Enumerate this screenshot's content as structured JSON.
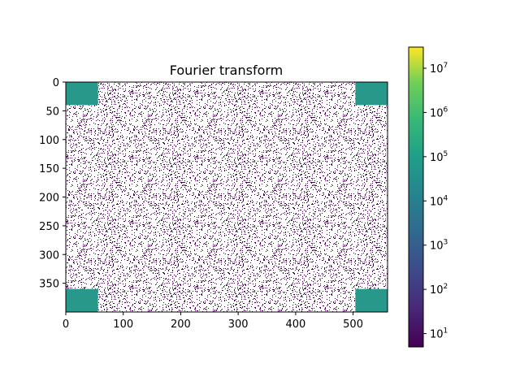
{
  "chart_data": {
    "type": "heatmap",
    "title": "Fourier transform",
    "xlabel": "",
    "ylabel": "",
    "image_shape": [
      400,
      560
    ],
    "xlim": [
      0,
      560
    ],
    "ylim": [
      400,
      0
    ],
    "x_ticks": [
      0,
      100,
      200,
      300,
      400,
      500
    ],
    "y_ticks": [
      0,
      50,
      100,
      150,
      200,
      250,
      300,
      350
    ],
    "colormap": "viridis",
    "colorbar": {
      "scale": "log",
      "range": [
        5,
        30000000
      ],
      "ticks": [
        {
          "value": 10,
          "label": "10",
          "exp": "1"
        },
        {
          "value": 100,
          "label": "10",
          "exp": "2"
        },
        {
          "value": 1000,
          "label": "10",
          "exp": "3"
        },
        {
          "value": 10000,
          "label": "10",
          "exp": "4"
        },
        {
          "value": 100000,
          "label": "10",
          "exp": "5"
        },
        {
          "value": 1000000,
          "label": "10",
          "exp": "6"
        },
        {
          "value": 10000000,
          "label": "10",
          "exp": "7"
        }
      ]
    },
    "regions": [
      {
        "name": "top-left",
        "x": [
          0,
          56
        ],
        "y": [
          0,
          40
        ],
        "level": 50000
      },
      {
        "name": "top-right",
        "x": [
          504,
          560
        ],
        "y": [
          0,
          40
        ],
        "level": 50000
      },
      {
        "name": "bottom-left",
        "x": [
          0,
          56
        ],
        "y": [
          360,
          400
        ],
        "level": 50000
      },
      {
        "name": "bottom-right",
        "x": [
          504,
          560
        ],
        "y": [
          360,
          400
        ],
        "level": 50000
      }
    ],
    "background": "sparse low values (~10) scattered over white (masked) area"
  }
}
